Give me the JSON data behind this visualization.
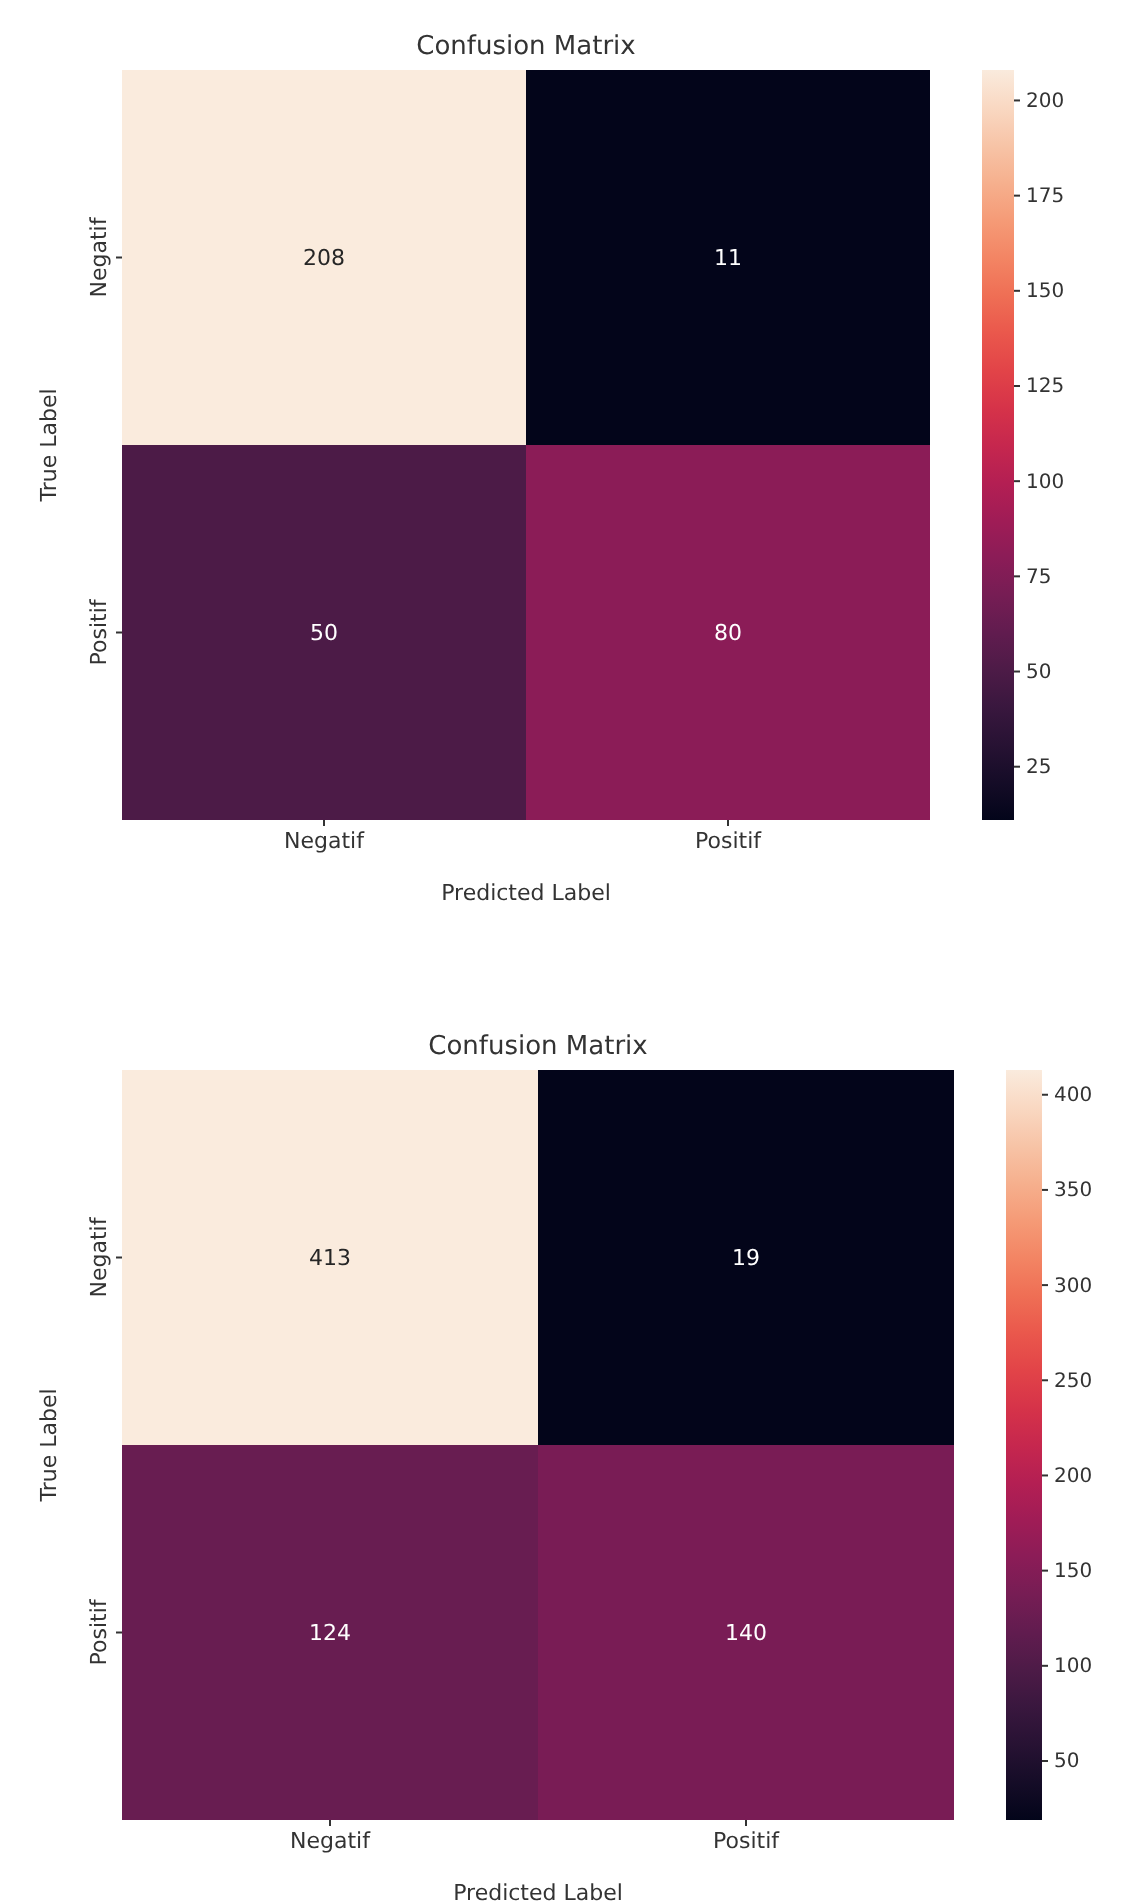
{
  "chart_data": [
    {
      "type": "heatmap",
      "title": "Confusion Matrix",
      "xlabel": "Predicted Label",
      "ylabel": "True Label",
      "categories": [
        "Negatif",
        "Positif"
      ],
      "y_categories": [
        "Negatif",
        "Positif"
      ],
      "cells": [
        [
          208,
          11
        ],
        [
          50,
          80
        ]
      ],
      "data_labels": true,
      "clim": [
        11,
        208
      ],
      "cticks": [
        25,
        50,
        75,
        100,
        125,
        150,
        175,
        200
      ]
    },
    {
      "type": "heatmap",
      "title": "Confusion Matrix",
      "xlabel": "Predicted Label",
      "ylabel": "True Label",
      "categories": [
        "Negatif",
        "Positif"
      ],
      "y_categories": [
        "Negatif",
        "Positif"
      ],
      "cells": [
        [
          413,
          19
        ],
        [
          124,
          140
        ]
      ],
      "data_labels": true,
      "clim": [
        19,
        413
      ],
      "cticks": [
        50,
        100,
        150,
        200,
        250,
        300,
        350,
        400
      ]
    }
  ]
}
